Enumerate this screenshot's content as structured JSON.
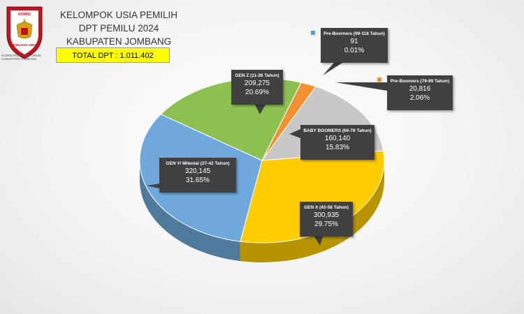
{
  "header": {
    "logo_text_top": "KOMISI",
    "logo_text_bottom": "PEMILIHAN UMUM",
    "logo_caption_1": "KOMISI PEMILIHAN UMUM",
    "logo_caption_2": "KABUPATEN JOMBANG",
    "title_line1": "KELOMPOK USIA PEMILIH",
    "title_line2": "DPT PEMILU 2024",
    "title_line3": "KABUPATEN JOMBANG",
    "total": "TOTAL DPT : 1.011.402"
  },
  "colors": {
    "gen_x": "#ffcc00",
    "gen_y": "#6fa8dc",
    "gen_z": "#8cc152",
    "baby_boomers": "#c8c8c8",
    "pre_boomers_79": "#f4902f",
    "pre_boomers_99": "#5b9bd5"
  },
  "chart_data": {
    "type": "pie",
    "title": "KELOMPOK USIA PEMILIH DPT PEMILU 2024 KABUPATEN JOMBANG",
    "slices": [
      {
        "key": "gen_x",
        "label": "GEN X (43-58 Tahun)",
        "value": 300935,
        "value_text": "300,935",
        "percent": 29.75,
        "percent_text": "29.75%"
      },
      {
        "key": "gen_y",
        "label": "GEN Y/ Milenial (27-42 Tahun)",
        "value": 320145,
        "value_text": "320,145",
        "percent": 31.65,
        "percent_text": "31.65%"
      },
      {
        "key": "gen_z",
        "label": "GEN Z (11-26 Tahun)",
        "value": 209275,
        "value_text": "209,275",
        "percent": 20.69,
        "percent_text": "20.69%"
      },
      {
        "key": "pre_boomers_99",
        "label": "Pre-Boomers (99-118 Tahun)",
        "value": 91,
        "value_text": "91",
        "percent": 0.01,
        "percent_text": "0.01%"
      },
      {
        "key": "pre_boomers_79",
        "label": "Pre-Boomers (79-99 Tahun)",
        "value": 20816,
        "value_text": "20,816",
        "percent": 2.06,
        "percent_text": "2.06%"
      },
      {
        "key": "baby_boomers",
        "label": "BABY BOOMERS (60-78 Tahun)",
        "value": 160140,
        "value_text": "160,140",
        "percent": 15.83,
        "percent_text": "15.83%"
      }
    ]
  }
}
